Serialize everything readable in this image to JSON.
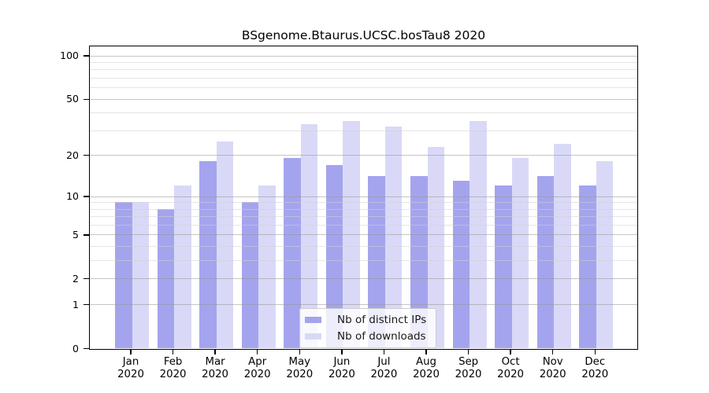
{
  "title": "BSgenome.Btaurus.UCSC.bosTau8 2020",
  "chart_data": {
    "type": "bar",
    "title": "BSgenome.Btaurus.UCSC.bosTau8 2020",
    "categories": [
      "Jan 2020",
      "Feb 2020",
      "Mar 2020",
      "Apr 2020",
      "May 2020",
      "Jun 2020",
      "Jul 2020",
      "Aug 2020",
      "Sep 2020",
      "Oct 2020",
      "Nov 2020",
      "Dec 2020"
    ],
    "series": [
      {
        "name": "Nb of distinct IPs",
        "color": "#a4a4ee",
        "values": [
          9,
          8,
          18,
          9,
          19,
          17,
          14,
          14,
          13,
          12,
          14,
          12
        ]
      },
      {
        "name": "Nb of downloads",
        "color": "#d9d9f7",
        "values": [
          9,
          12,
          25,
          12,
          33,
          35,
          32,
          23,
          35,
          19,
          24,
          18
        ]
      }
    ],
    "xlabel": "",
    "ylabel": "",
    "yscale": "log1p",
    "ylim": [
      0,
      100
    ],
    "yticks": [
      0,
      1,
      2,
      5,
      10,
      20,
      50,
      100
    ],
    "minor_gridlines": [
      3,
      4,
      6,
      7,
      8,
      9,
      30,
      40,
      60,
      70,
      80,
      90
    ],
    "grid": true,
    "legend_position": "bottom-center"
  }
}
